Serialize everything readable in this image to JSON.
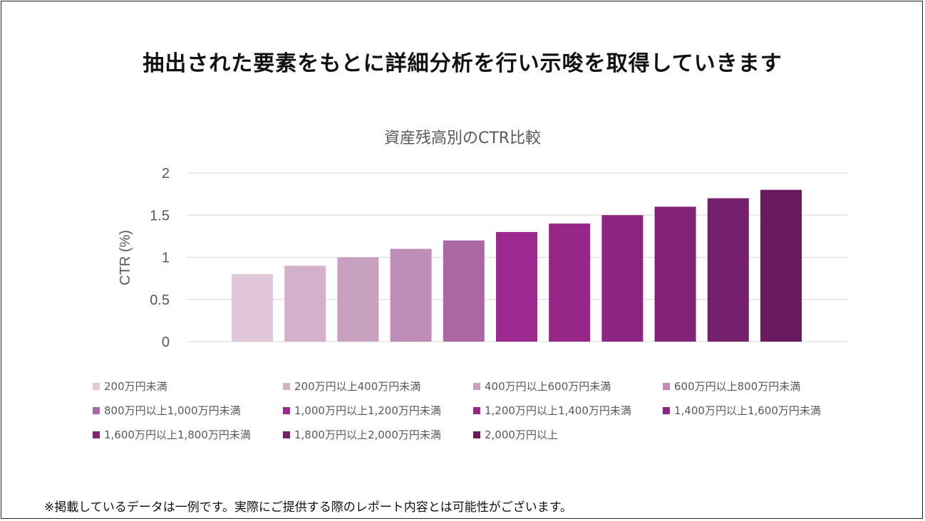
{
  "headline": "抽出された要素をもとに詳細分析を行い示唆を取得していきます",
  "footnote": "※掲載しているデータは一例です。実際にご提供する際のレポート内容とは可能性がございます。",
  "chart_data": {
    "type": "bar",
    "title": "資産残高別のCTR比較",
    "xlabel": "",
    "ylabel": "CTR (%)",
    "ylim": [
      0,
      2
    ],
    "yticks": [
      "0",
      "0.5",
      "1",
      "1.5",
      "2"
    ],
    "grid": true,
    "legend_position": "bottom",
    "categories": [
      "200万円未満",
      "200万円以上400万円未満",
      "400万円以上600万円未満",
      "600万円以上800万円未満",
      "800万円以上1,000万円未満",
      "1,000万円以上1,200万円未満",
      "1,200万円以上1,400万円未満",
      "1,400万円以上1,600万円未満",
      "1,600万円以上1,800万円未満",
      "1,800万円以上2,000万円未満",
      "2,000万円以上"
    ],
    "values": [
      0.8,
      0.9,
      1.0,
      1.1,
      1.2,
      1.3,
      1.4,
      1.5,
      1.6,
      1.7,
      1.8
    ],
    "colors": [
      "#e2c6da",
      "#d4b1cb",
      "#c8a1c0",
      "#bd8cb7",
      "#ab68a5",
      "#9b2990",
      "#942788",
      "#8c2581",
      "#832378",
      "#75206b",
      "#6a1a5f"
    ]
  }
}
